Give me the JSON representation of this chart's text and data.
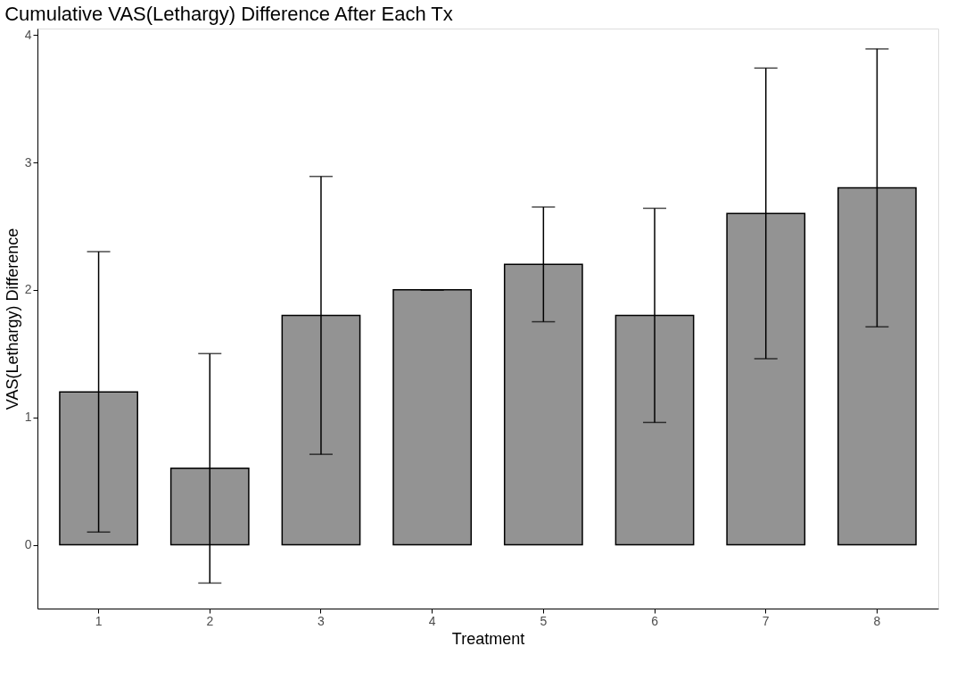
{
  "chart_data": {
    "type": "bar",
    "title": "Cumulative  VAS(Lethargy) Difference After Each Tx",
    "xlabel": "Treatment",
    "ylabel": "VAS(Lethargy) Difference",
    "categories": [
      "1",
      "2",
      "3",
      "4",
      "5",
      "6",
      "7",
      "8"
    ],
    "values": [
      1.2,
      0.6,
      1.8,
      2.0,
      2.2,
      1.8,
      2.6,
      2.8
    ],
    "errors": [
      1.1,
      0.9,
      1.09,
      0,
      0.45,
      0.84,
      1.14,
      1.09
    ],
    "color": "#939393",
    "ylim": [
      -0.5,
      4.05
    ],
    "yticks": [
      0,
      1,
      2,
      3,
      4
    ],
    "grid": false
  }
}
